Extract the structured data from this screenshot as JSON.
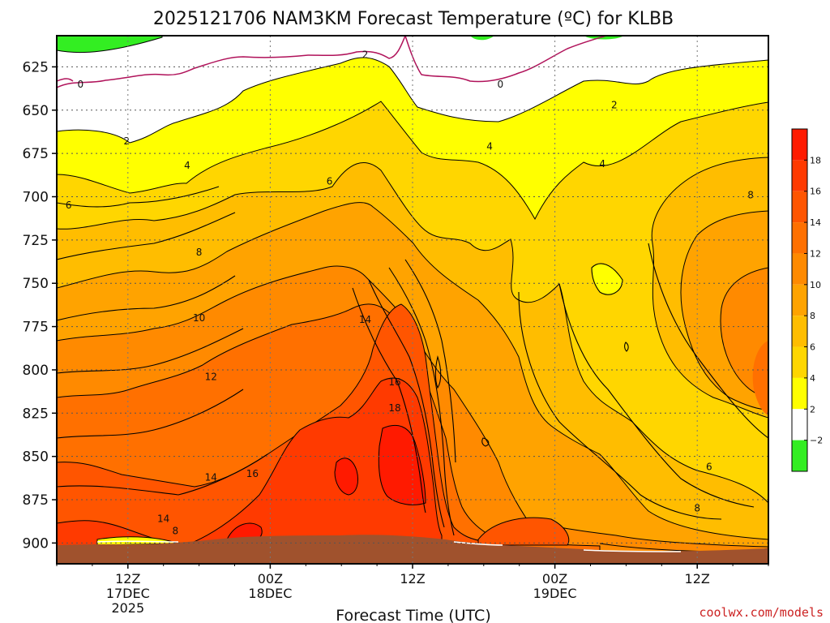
{
  "chart_data": {
    "type": "heatmap",
    "title": "2025121706 NAM3KM Forecast Temperature (ºC) for KLBB",
    "xlabel": "Forecast Time (UTC)",
    "ylabel": "",
    "credit": "coolwx.com/models",
    "colors": {
      "ground": "#a0522d",
      "freezing_line": "#b0125a",
      "credit": "#cc2222"
    },
    "x_ticks": [
      {
        "hour": 6,
        "label": "12Z",
        "sub1": "17DEC",
        "sub2": "2025"
      },
      {
        "hour": 18,
        "label": "00Z",
        "sub1": "18DEC",
        "sub2": ""
      },
      {
        "hour": 30,
        "label": "12Z",
        "sub1": "",
        "sub2": ""
      },
      {
        "hour": 42,
        "label": "00Z",
        "sub1": "19DEC",
        "sub2": ""
      },
      {
        "hour": 54,
        "label": "12Z",
        "sub1": "",
        "sub2": ""
      }
    ],
    "xlim_hours": [
      0,
      60
    ],
    "y_ticks": [
      625,
      650,
      675,
      700,
      725,
      750,
      775,
      800,
      825,
      850,
      875,
      900
    ],
    "ylim_hpa": [
      607,
      912
    ],
    "colorbar": {
      "labels": [
        "18",
        "16",
        "14",
        "12",
        "10",
        "8",
        "6",
        "4",
        "2",
        "−2"
      ],
      "bands": [
        {
          "color": "#ff1a00"
        },
        {
          "color": "#ff3a00"
        },
        {
          "color": "#ff5500"
        },
        {
          "color": "#ff7000"
        },
        {
          "color": "#ff8a00"
        },
        {
          "color": "#ffa300"
        },
        {
          "color": "#ffbd00"
        },
        {
          "color": "#ffd600"
        },
        {
          "color": "#ffff00"
        },
        {
          "color": "#ffffff"
        },
        {
          "color": "#33ee22"
        }
      ]
    },
    "contour_labels": [
      {
        "t": "2",
        "hour": 26,
        "p": 618
      },
      {
        "t": "0",
        "hour": 2,
        "p": 635
      },
      {
        "t": "0",
        "hour": 37.4,
        "p": 635
      },
      {
        "t": "2",
        "hour": 5.9,
        "p": 668
      },
      {
        "t": "2",
        "hour": 47,
        "p": 647
      },
      {
        "t": "4",
        "hour": 11,
        "p": 682
      },
      {
        "t": "4",
        "hour": 36.5,
        "p": 671
      },
      {
        "t": "4",
        "hour": 46,
        "p": 681
      },
      {
        "t": "6",
        "hour": 23,
        "p": 691
      },
      {
        "t": "6",
        "hour": 1,
        "p": 705
      },
      {
        "t": "8",
        "hour": 12,
        "p": 732
      },
      {
        "t": "8",
        "hour": 58.5,
        "p": 699
      },
      {
        "t": "10",
        "hour": 12,
        "p": 770
      },
      {
        "t": "12",
        "hour": 13,
        "p": 804
      },
      {
        "t": "14",
        "hour": 26,
        "p": 771
      },
      {
        "t": "16",
        "hour": 28.5,
        "p": 807
      },
      {
        "t": "18",
        "hour": 28.5,
        "p": 822
      },
      {
        "t": "14",
        "hour": 13,
        "p": 862
      },
      {
        "t": "16",
        "hour": 16.5,
        "p": 860
      },
      {
        "t": "14",
        "hour": 9,
        "p": 886
      },
      {
        "t": "8",
        "hour": 10,
        "p": 893
      },
      {
        "t": "6",
        "hour": 55,
        "p": 856
      },
      {
        "t": "8",
        "hour": 54,
        "p": 880
      }
    ]
  }
}
